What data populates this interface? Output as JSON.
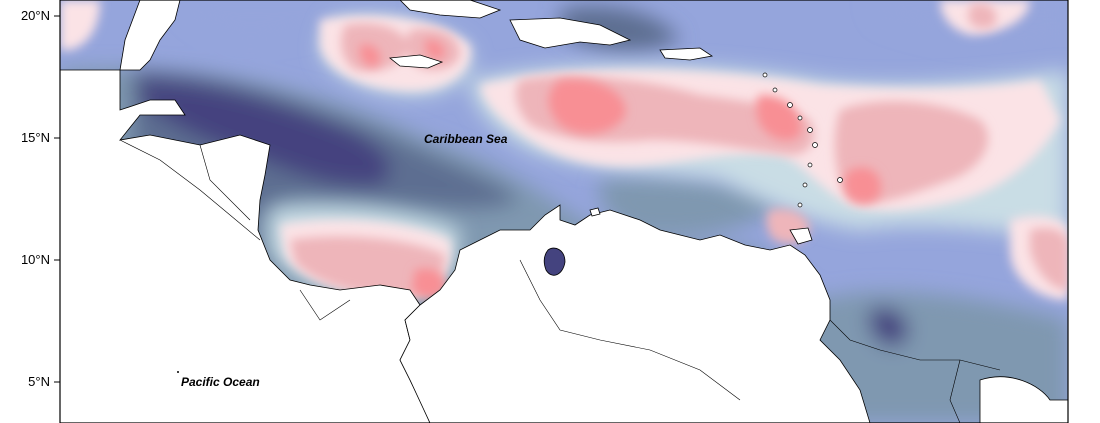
{
  "map": {
    "labels": {
      "caribbean_sea": "Caribbean Sea",
      "pacific_ocean": "Pacific Ocean"
    },
    "lat_ticks": [
      "20°N",
      "15°N",
      "10°N",
      "5°N"
    ],
    "colors": {
      "land": "#ffffff",
      "frame": "#000000",
      "darkest_blue": "#44437f",
      "dark_slate": "#5d6e91",
      "slate": "#7f98b0",
      "medium_blue": "#95a5dc",
      "pale_blue": "#c9dde5",
      "pale_pink": "#fbe3e6",
      "pink": "#eeb5ba",
      "red_pink": "#f88f94"
    }
  }
}
